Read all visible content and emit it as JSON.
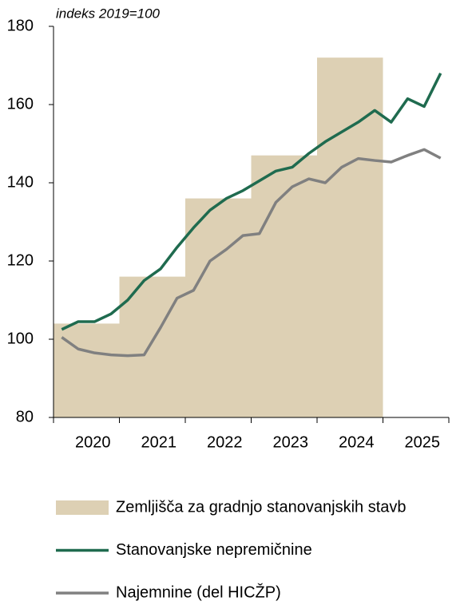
{
  "chart_data": {
    "type": "bar+line",
    "subtitle": "indeks 2019=100",
    "xlim": [
      2020,
      2026
    ],
    "xticks": [
      2020,
      2021,
      2022,
      2023,
      2024,
      2025
    ],
    "ylim": [
      80,
      180
    ],
    "yticks": [
      80,
      100,
      120,
      140,
      160,
      180
    ],
    "series": [
      {
        "name": "Zemljišča za gradnjo stanovanjskih stavb",
        "type": "bar",
        "color": "#ddd0b4",
        "x": [
          2020,
          2021,
          2022,
          2023,
          2024
        ],
        "values": [
          104,
          116,
          136,
          147,
          172
        ]
      },
      {
        "name": "Stanovanjske nepremičnine",
        "type": "line",
        "color": "#1f6b4f",
        "x": [
          2020.125,
          2020.375,
          2020.625,
          2020.875,
          2021.125,
          2021.375,
          2021.625,
          2021.875,
          2022.125,
          2022.375,
          2022.625,
          2022.875,
          2023.125,
          2023.375,
          2023.625,
          2023.875,
          2024.125,
          2024.375,
          2024.625,
          2024.875,
          2025.125,
          2025.375,
          2025.625,
          2025.875
        ],
        "values": [
          102.5,
          104.5,
          104.5,
          106.5,
          110,
          115,
          118,
          123.5,
          128.5,
          133,
          136,
          138,
          140.5,
          143,
          144,
          147.5,
          150.5,
          153,
          155.5,
          158.5,
          155.5,
          161.5,
          159.5,
          168
        ]
      },
      {
        "name": "Najemnine (del HICŽP)",
        "type": "line",
        "color": "#808080",
        "x": [
          2020.125,
          2020.375,
          2020.625,
          2020.875,
          2021.125,
          2021.375,
          2021.625,
          2021.875,
          2022.125,
          2022.375,
          2022.625,
          2022.875,
          2023.125,
          2023.375,
          2023.625,
          2023.875,
          2024.125,
          2024.375,
          2024.625,
          2024.875,
          2025.125,
          2025.375,
          2025.625,
          2025.875
        ],
        "values": [
          100.5,
          97.5,
          96.5,
          96,
          95.8,
          96,
          103,
          110.5,
          112.5,
          120,
          123,
          126.5,
          127,
          135,
          139,
          141,
          140,
          144,
          146.2,
          145.7,
          145.3,
          147,
          148.5,
          146.3
        ]
      }
    ]
  }
}
